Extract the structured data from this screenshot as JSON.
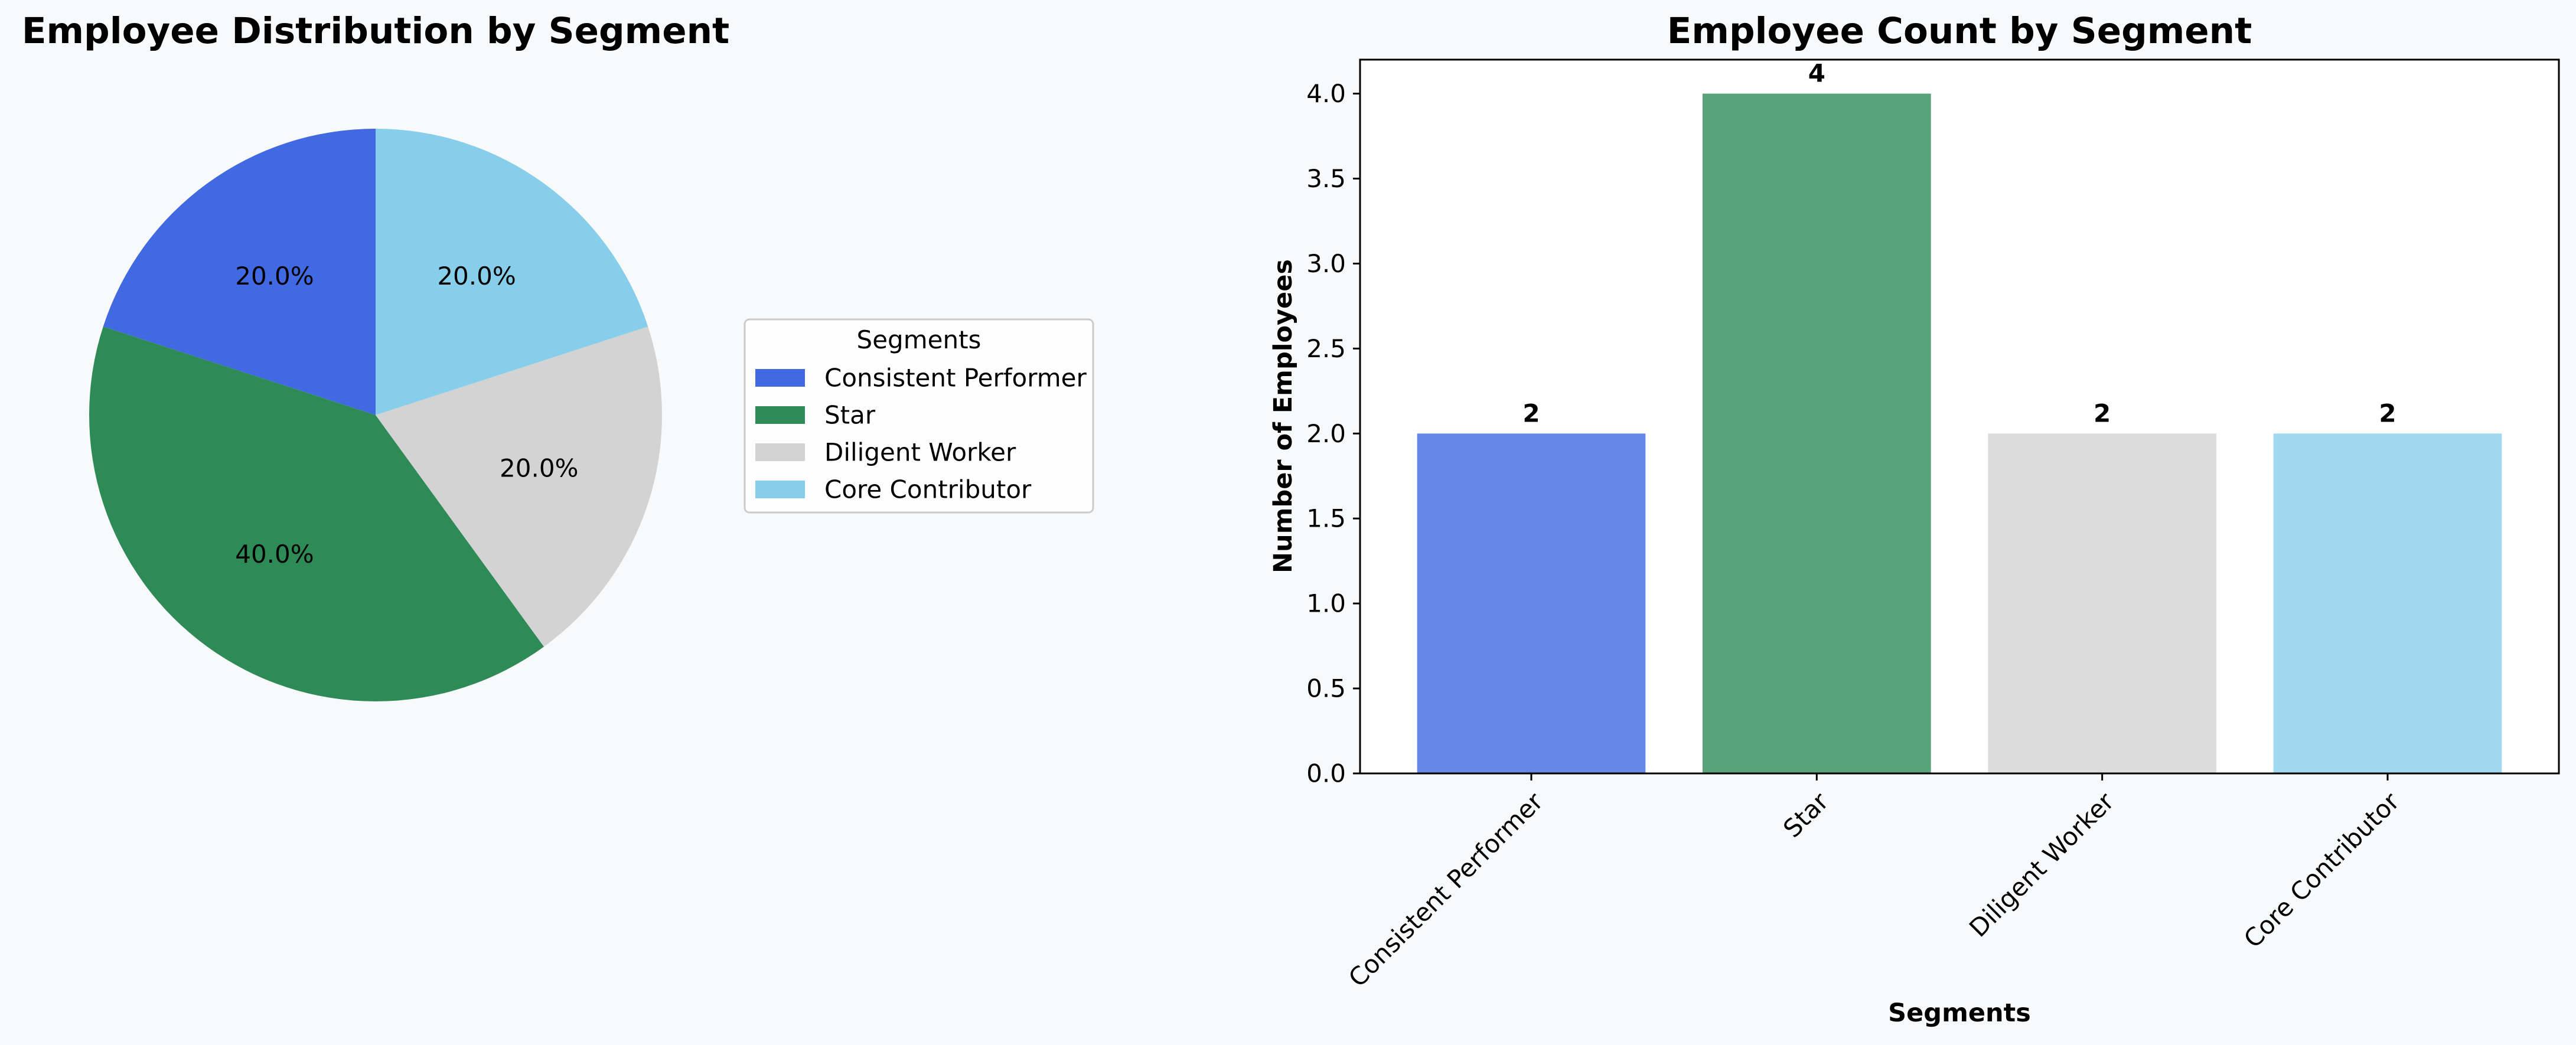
{
  "chart_data": [
    {
      "type": "pie",
      "title": "Employee Distribution by Segment",
      "categories": [
        "Consistent Performer",
        "Star",
        "Diligent Worker",
        "Core Contributor"
      ],
      "values": [
        2,
        4,
        2,
        2
      ],
      "percent_labels": [
        "20.0%",
        "40.0%",
        "20.0%",
        "20.0%"
      ],
      "colors": [
        "#4169e1",
        "#2e8b57",
        "#d3d3d3",
        "#87ceeb"
      ],
      "start_angle_deg": 90,
      "direction": "counterclockwise",
      "legend": {
        "title": "Segments",
        "placement": "right"
      }
    },
    {
      "type": "bar",
      "title": "Employee Count by Segment",
      "categories": [
        "Consistent Performer",
        "Star",
        "Diligent Worker",
        "Core Contributor"
      ],
      "values": [
        2,
        4,
        2,
        2
      ],
      "value_labels": [
        "2",
        "4",
        "2",
        "2"
      ],
      "colors": [
        "#4169e1",
        "#2e8b57",
        "#d3d3d3",
        "#87ceeb"
      ],
      "bar_opacity": 0.8,
      "xlabel": "Segments",
      "ylabel": "Number of Employees",
      "ylim": [
        0,
        4.2
      ],
      "yticks": [
        "0.0",
        "0.5",
        "1.0",
        "1.5",
        "2.0",
        "2.5",
        "3.0",
        "3.5",
        "4.0"
      ],
      "grid": false,
      "x_tick_rotation_deg": 45
    }
  ]
}
